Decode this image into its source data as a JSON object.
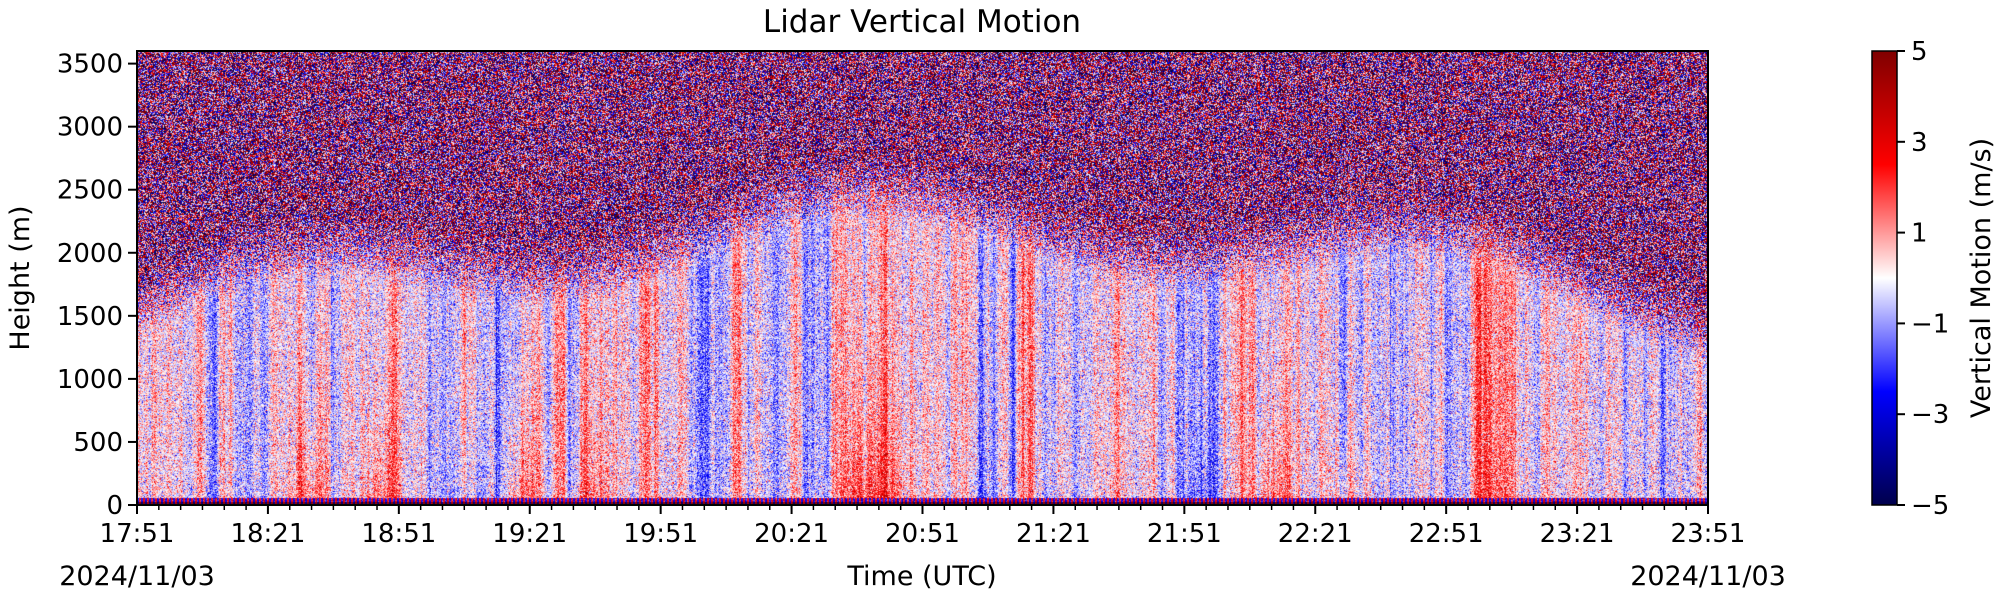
{
  "chart_data": {
    "type": "heatmap",
    "title": "Lidar Vertical Motion",
    "xlabel": "Time (UTC)",
    "ylabel": "Height (m)",
    "x_start_date": "2024/11/03",
    "x_end_date": "2024/11/03",
    "x_range": [
      "17:51",
      "23:51"
    ],
    "x_ticks": [
      "17:51",
      "18:21",
      "18:51",
      "19:21",
      "19:51",
      "20:21",
      "20:51",
      "21:21",
      "21:51",
      "22:21",
      "22:51",
      "23:21",
      "23:51"
    ],
    "x_minor_tick_interval_min": 5,
    "ylim": [
      0,
      3600
    ],
    "y_ticks": [
      0,
      500,
      1000,
      1500,
      2000,
      2500,
      3000,
      3500
    ],
    "colorbar": {
      "label": "Vertical Motion (m/s)",
      "range": [
        -5,
        5
      ],
      "ticks": [
        5,
        3,
        1,
        -1,
        -3,
        -5
      ],
      "tick_labels": [
        "5",
        "3",
        "1",
        "−1",
        "−3",
        "−5"
      ],
      "colormap": "seismic"
    },
    "regions": [
      {
        "height_range": [
          0,
          60
        ],
        "description": "near-surface strip, strongly alternating ±5 m/s"
      },
      {
        "height_range": [
          60,
          1100
        ],
        "description": "boundary layer, mostly weak updrafts/downdrafts −2 to +2 m/s with red plumes near 18:15, 18:45, 19:30, 20:18, 20:55 and blue near 20:22"
      },
      {
        "height_range": [
          1100,
          2300
        ],
        "description": "transition zone, weak motion near 0 m/s with noise increasing with height"
      },
      {
        "height_range": [
          2300,
          3600
        ],
        "description": "noise dominated, values spanning −5 to +5 m/s"
      }
    ]
  }
}
